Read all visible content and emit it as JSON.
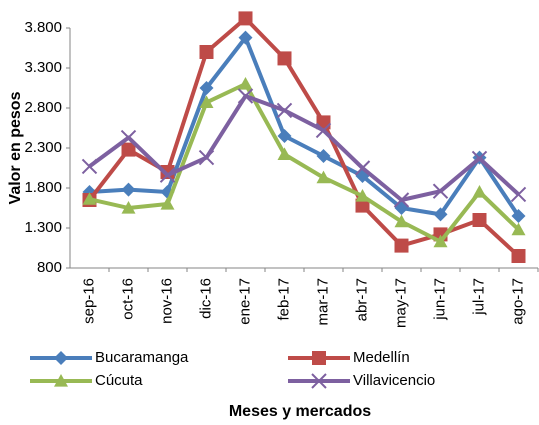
{
  "chart_data": {
    "type": "line",
    "y_label": "Valor en pesos",
    "x_label": "Meses  y mercados",
    "categories": [
      "sep-16",
      "oct-16",
      "nov-16",
      "dic-16",
      "ene-17",
      "feb-17",
      "mar-17",
      "abr-17",
      "may-17",
      "jun-17",
      "jul-17",
      "ago-17"
    ],
    "series": [
      {
        "name": "Bucaramanga",
        "color": "#4a7ebb",
        "marker": "diamond",
        "values": [
          1750,
          1780,
          1750,
          3050,
          3680,
          2450,
          2200,
          1950,
          1550,
          1470,
          2180,
          1450
        ]
      },
      {
        "name": "Medellín",
        "color": "#be4b48",
        "marker": "square",
        "values": [
          1650,
          2280,
          2000,
          3500,
          3920,
          3420,
          2620,
          1580,
          1080,
          1220,
          1400,
          950
        ]
      },
      {
        "name": "Cúcuta",
        "color": "#98b954",
        "marker": "triangle",
        "values": [
          1660,
          1550,
          1600,
          2870,
          3100,
          2220,
          1930,
          1700,
          1380,
          1130,
          1750,
          1280
        ]
      },
      {
        "name": "Villavicencio",
        "color": "#7d60a0",
        "marker": "x",
        "values": [
          2070,
          2430,
          1960,
          2180,
          2950,
          2770,
          2520,
          2050,
          1650,
          1760,
          2170,
          1720
        ]
      }
    ],
    "ylim": [
      800,
      3800
    ],
    "yticks": [
      800,
      {
        "value": 1300,
        "label": "1.300"
      },
      {
        "value": 1800,
        "label": "1.800"
      },
      {
        "value": 2300,
        "label": "2.300"
      },
      {
        "value": 2800,
        "label": "2.800"
      },
      {
        "value": 3300,
        "label": "3.300"
      },
      {
        "value": 3800,
        "label": "3.800"
      }
    ],
    "grid": false
  }
}
